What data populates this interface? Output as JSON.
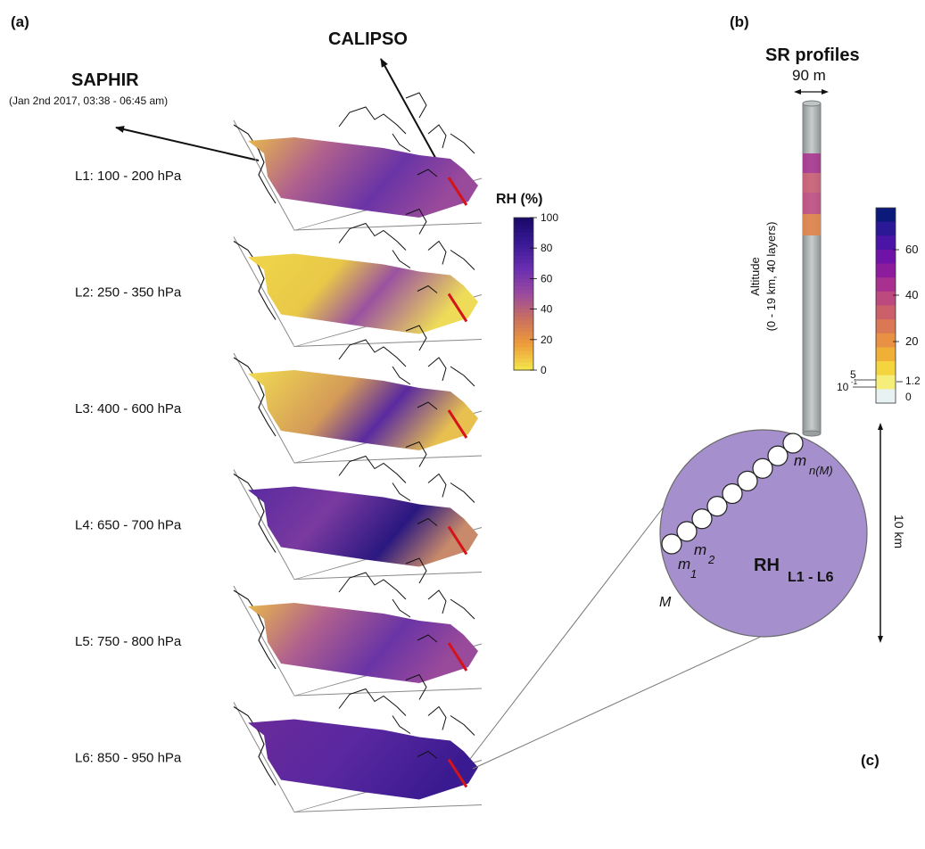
{
  "panel_a": {
    "tag": "(a)",
    "saphir_title": "SAPHIR",
    "saphir_subtitle": "(Jan 2nd 2017, 03:38 - 06:45 am)",
    "calipso_title": "CALIPSO",
    "layers": [
      {
        "label": "L1: 100 - 200 hPa",
        "tone": "mixed"
      },
      {
        "label": "L2: 250 - 350 hPa",
        "tone": "dry"
      },
      {
        "label": "L3: 400 - 600 hPa",
        "tone": "dry-mixed"
      },
      {
        "label": "L4: 650 - 700 hPa",
        "tone": "moist"
      },
      {
        "label": "L5: 750 - 800 hPa",
        "tone": "mixed"
      },
      {
        "label": "L6: 850 - 950 hPa",
        "tone": "very-moist"
      }
    ],
    "colorbar": {
      "title": "RH (%)",
      "ticks": [
        "100",
        "80",
        "60",
        "40",
        "20",
        "0"
      ],
      "colors": [
        "#1a0a6b",
        "#3a1a96",
        "#6a2fb0",
        "#9a4a9f",
        "#c97060",
        "#ee9a3a",
        "#f3e14a"
      ]
    }
  },
  "panel_b": {
    "tag": "(b)",
    "title": "SR profiles",
    "width_label": "90 m",
    "axis_label_line1": "Altitude",
    "axis_label_line2": "(0 - 19 km, 40 layers)",
    "colorbar_ticks_right": [
      "60",
      "40",
      "20",
      "1.2",
      "0"
    ],
    "colorbar_ticks_left": [
      "5",
      "10"
    ],
    "exponent": "-1",
    "colors": [
      "#0b1a7a",
      "#2a1896",
      "#4a14a6",
      "#6f12a8",
      "#8c1c9c",
      "#a8308e",
      "#bc4a7e",
      "#cc606a",
      "#da7856",
      "#e89044",
      "#f0b038",
      "#f4d540",
      "#f6ee7a",
      "#e8f2f2"
    ]
  },
  "panel_c": {
    "tag": "(c)",
    "rh_label": "RH",
    "rh_sub": "L1 - L6",
    "m_label": "M",
    "m1": "m",
    "m1_sub": "1",
    "m2": "m",
    "m2_sub": "2",
    "mn": "m",
    "mn_sub": "n(M)",
    "scale_label": "10 km",
    "circle_color": "#a58fcc"
  }
}
